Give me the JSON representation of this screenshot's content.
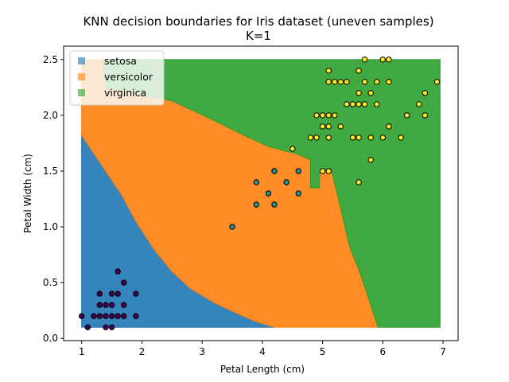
{
  "chart_data": {
    "type": "scatter",
    "title": "KNN decision boundaries for Iris dataset (uneven samples)",
    "subtitle": "K=1",
    "xlabel": "Petal Length (cm)",
    "ylabel": "Petal Width (cm)",
    "xlim": [
      0.7,
      7.25
    ],
    "ylim": [
      -0.02,
      2.62
    ],
    "xticks": [
      "1",
      "2",
      "3",
      "4",
      "5",
      "6",
      "7"
    ],
    "yticks": [
      "0.0",
      "0.5",
      "1.0",
      "1.5",
      "2.0",
      "2.5"
    ],
    "grid": false,
    "legend_position": "upper-left",
    "regions": [
      {
        "name": "setosa",
        "color": "#1f77b4",
        "polygon": [
          [
            1.0,
            0.1
          ],
          [
            1.0,
            1.82
          ],
          [
            1.15,
            1.7
          ],
          [
            1.4,
            1.5
          ],
          [
            1.65,
            1.3
          ],
          [
            1.9,
            1.05
          ],
          [
            2.2,
            0.8
          ],
          [
            2.5,
            0.6
          ],
          [
            2.8,
            0.45
          ],
          [
            3.2,
            0.32
          ],
          [
            3.6,
            0.22
          ],
          [
            3.9,
            0.15
          ],
          [
            4.2,
            0.1
          ]
        ]
      },
      {
        "name": "versicolor",
        "color": "#ff7f0e",
        "polygon": [
          [
            1.0,
            1.82
          ],
          [
            1.0,
            2.5
          ],
          [
            1.35,
            2.5
          ],
          [
            1.4,
            2.25
          ],
          [
            2.5,
            2.13
          ],
          [
            3.1,
            1.98
          ],
          [
            3.7,
            1.82
          ],
          [
            4.1,
            1.72
          ],
          [
            4.6,
            1.65
          ],
          [
            4.8,
            1.6
          ],
          [
            4.8,
            1.35
          ],
          [
            4.95,
            1.35
          ],
          [
            4.95,
            1.5
          ],
          [
            5.15,
            1.5
          ],
          [
            5.3,
            1.17
          ],
          [
            5.45,
            0.82
          ],
          [
            5.6,
            0.62
          ],
          [
            5.8,
            0.3
          ],
          [
            5.92,
            0.1
          ],
          [
            4.2,
            0.1
          ],
          [
            3.9,
            0.15
          ],
          [
            3.6,
            0.22
          ],
          [
            3.2,
            0.32
          ],
          [
            2.8,
            0.45
          ],
          [
            2.5,
            0.6
          ],
          [
            2.2,
            0.8
          ],
          [
            1.9,
            1.05
          ],
          [
            1.65,
            1.3
          ],
          [
            1.4,
            1.5
          ],
          [
            1.15,
            1.7
          ]
        ]
      },
      {
        "name": "virginica",
        "color": "#2ca02c",
        "polygon": [
          [
            1.35,
            2.5
          ],
          [
            6.95,
            2.5
          ],
          [
            6.95,
            0.1
          ],
          [
            5.92,
            0.1
          ],
          [
            5.8,
            0.3
          ],
          [
            5.6,
            0.62
          ],
          [
            5.45,
            0.82
          ],
          [
            5.3,
            1.17
          ],
          [
            5.15,
            1.5
          ],
          [
            4.95,
            1.5
          ],
          [
            4.95,
            1.35
          ],
          [
            4.8,
            1.35
          ],
          [
            4.8,
            1.6
          ],
          [
            4.6,
            1.65
          ],
          [
            4.1,
            1.72
          ],
          [
            3.7,
            1.82
          ],
          [
            3.1,
            1.98
          ],
          [
            2.5,
            2.13
          ],
          [
            1.4,
            2.25
          ]
        ]
      }
    ],
    "series": [
      {
        "name": "setosa",
        "color": "#440154",
        "points": [
          [
            1.0,
            0.2
          ],
          [
            1.1,
            0.1
          ],
          [
            1.2,
            0.2
          ],
          [
            1.3,
            0.2
          ],
          [
            1.3,
            0.3
          ],
          [
            1.3,
            0.4
          ],
          [
            1.4,
            0.1
          ],
          [
            1.4,
            0.2
          ],
          [
            1.4,
            0.3
          ],
          [
            1.5,
            0.1
          ],
          [
            1.5,
            0.2
          ],
          [
            1.5,
            0.3
          ],
          [
            1.5,
            0.4
          ],
          [
            1.6,
            0.2
          ],
          [
            1.6,
            0.4
          ],
          [
            1.6,
            0.6
          ],
          [
            1.7,
            0.2
          ],
          [
            1.7,
            0.3
          ],
          [
            1.7,
            0.5
          ],
          [
            1.9,
            0.2
          ],
          [
            1.9,
            0.4
          ]
        ]
      },
      {
        "name": "versicolor",
        "color": "#21918c",
        "points": [
          [
            3.5,
            1.0
          ],
          [
            3.9,
            1.2
          ],
          [
            3.9,
            1.4
          ],
          [
            4.1,
            1.3
          ],
          [
            4.2,
            1.2
          ],
          [
            4.2,
            1.5
          ],
          [
            4.4,
            1.4
          ],
          [
            4.6,
            1.3
          ],
          [
            4.6,
            1.5
          ]
        ]
      },
      {
        "name": "virginica",
        "color": "#fde725",
        "points": [
          [
            4.5,
            1.7
          ],
          [
            4.8,
            1.8
          ],
          [
            4.9,
            1.8
          ],
          [
            4.9,
            2.0
          ],
          [
            5.0,
            1.5
          ],
          [
            5.0,
            1.9
          ],
          [
            5.0,
            2.0
          ],
          [
            5.1,
            1.5
          ],
          [
            5.1,
            1.8
          ],
          [
            5.1,
            1.9
          ],
          [
            5.1,
            2.0
          ],
          [
            5.1,
            2.3
          ],
          [
            5.1,
            2.4
          ],
          [
            5.2,
            2.0
          ],
          [
            5.2,
            2.3
          ],
          [
            5.3,
            1.9
          ],
          [
            5.3,
            2.3
          ],
          [
            5.4,
            2.1
          ],
          [
            5.4,
            2.3
          ],
          [
            5.5,
            1.8
          ],
          [
            5.5,
            2.1
          ],
          [
            5.6,
            1.4
          ],
          [
            5.6,
            1.8
          ],
          [
            5.6,
            2.1
          ],
          [
            5.6,
            2.2
          ],
          [
            5.6,
            2.4
          ],
          [
            5.7,
            2.1
          ],
          [
            5.7,
            2.3
          ],
          [
            5.7,
            2.5
          ],
          [
            5.8,
            1.6
          ],
          [
            5.8,
            1.8
          ],
          [
            5.8,
            2.2
          ],
          [
            5.9,
            2.1
          ],
          [
            5.9,
            2.3
          ],
          [
            6.0,
            1.8
          ],
          [
            6.0,
            2.5
          ],
          [
            6.1,
            1.9
          ],
          [
            6.1,
            2.3
          ],
          [
            6.1,
            2.5
          ],
          [
            6.3,
            1.8
          ],
          [
            6.4,
            2.0
          ],
          [
            6.6,
            2.1
          ],
          [
            6.7,
            2.0
          ],
          [
            6.7,
            2.2
          ],
          [
            6.9,
            2.3
          ]
        ]
      }
    ],
    "legend": [
      {
        "label": "setosa",
        "color": "#1f77b4"
      },
      {
        "label": "versicolor",
        "color": "#ff7f0e"
      },
      {
        "label": "virginica",
        "color": "#2ca02c"
      }
    ]
  }
}
